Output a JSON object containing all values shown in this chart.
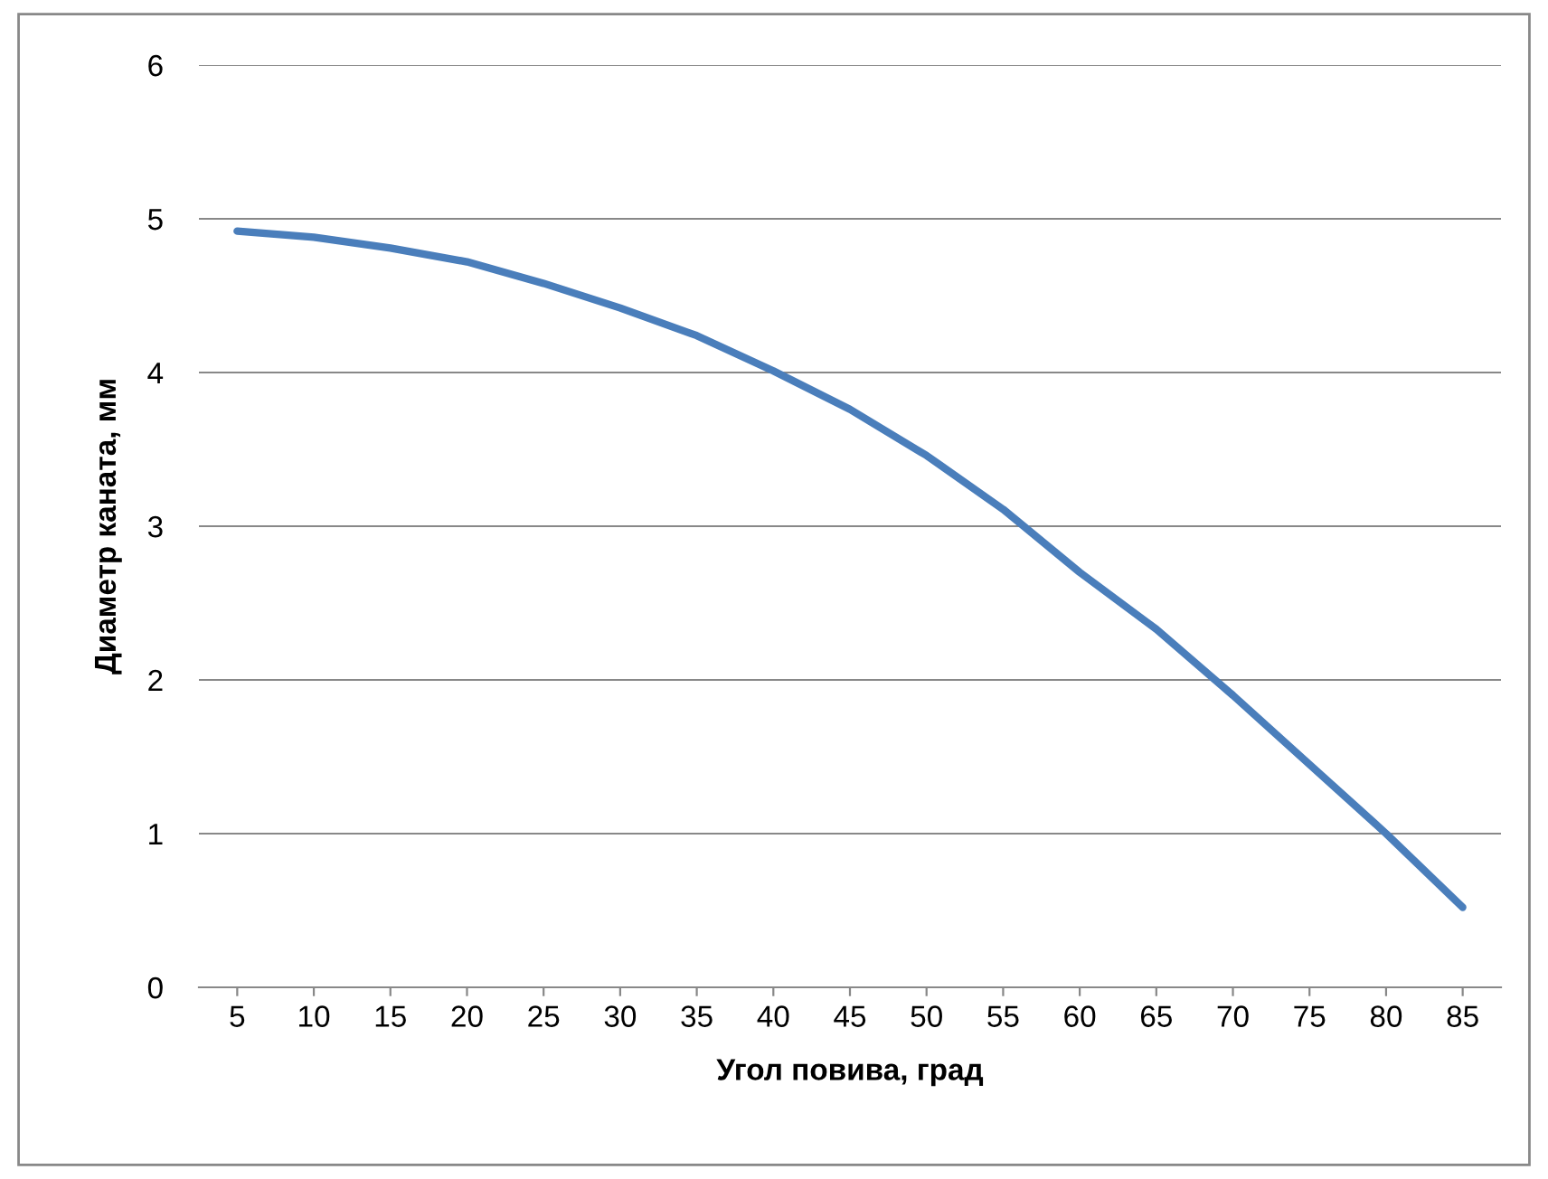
{
  "chart_data": {
    "type": "line",
    "xlabel": "Угол повива, град",
    "ylabel": "Диаметр каната, мм",
    "categories": [
      "5",
      "10",
      "15",
      "20",
      "25",
      "30",
      "35",
      "40",
      "45",
      "50",
      "55",
      "60",
      "65",
      "70",
      "75",
      "80",
      "85"
    ],
    "series": [
      {
        "color": "#4a7ebb",
        "values": [
          4.92,
          4.88,
          4.81,
          4.72,
          4.58,
          4.42,
          4.24,
          4.01,
          3.76,
          3.46,
          3.11,
          2.7,
          2.33,
          1.9,
          1.45,
          1.0,
          0.52
        ]
      }
    ],
    "ylim": [
      0,
      6
    ],
    "yticks": [
      0,
      1,
      2,
      3,
      4,
      5,
      6
    ],
    "grid": "y",
    "marker": "none",
    "line_style": "solid",
    "legend": false
  }
}
